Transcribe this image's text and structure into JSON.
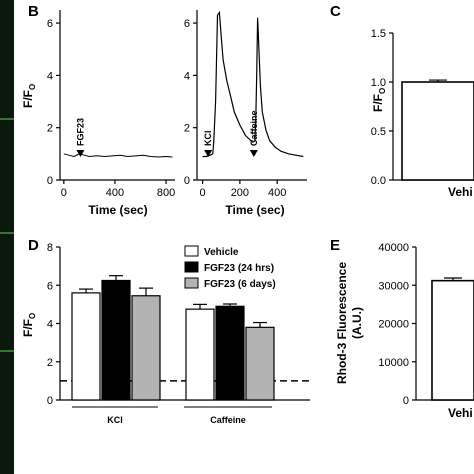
{
  "panel_labels": {
    "b": "B",
    "c": "C",
    "d": "D",
    "e": "E"
  },
  "colors": {
    "strip": "#1b3a1b",
    "strip_bright": "#2f7a2f",
    "gray_bar": "#b3b3b3"
  },
  "chart_data": [
    {
      "id": "b1",
      "type": "line",
      "ylabel": "F/F",
      "ylabel_sub": "O",
      "xlabel": "Time (sec)",
      "xlim": [
        -30,
        870
      ],
      "ylim": [
        0,
        6.5
      ],
      "xticks": [
        "0",
        "400",
        "800"
      ],
      "xtick_values": [
        0,
        400,
        800
      ],
      "yticks": [
        "0",
        "2",
        "4",
        "6"
      ],
      "ytick_values": [
        0,
        2,
        4,
        6
      ],
      "x": [
        0,
        40,
        80,
        120,
        160,
        200,
        260,
        320,
        380,
        440,
        500,
        560,
        620,
        680,
        740,
        800,
        850
      ],
      "y": [
        1.0,
        0.95,
        0.9,
        1.0,
        0.95,
        0.9,
        0.93,
        0.9,
        0.92,
        0.95,
        0.9,
        0.92,
        0.95,
        0.9,
        0.88,
        0.9,
        0.88
      ],
      "annotations": [
        {
          "text": "FGF23",
          "x": 130
        }
      ]
    },
    {
      "id": "b2",
      "type": "line",
      "xlabel": "Time (sec)",
      "xlim": [
        -30,
        560
      ],
      "ylim": [
        0,
        6.5
      ],
      "xticks": [
        "0",
        "200",
        "400"
      ],
      "xtick_values": [
        0,
        200,
        400
      ],
      "yticks": [
        "0",
        "2",
        "4",
        "6"
      ],
      "ytick_values": [
        0,
        2,
        4,
        6
      ],
      "x": [
        0,
        20,
        40,
        55,
        60,
        70,
        80,
        90,
        100,
        110,
        130,
        150,
        170,
        200,
        230,
        260,
        270,
        280,
        285,
        290,
        295,
        300,
        310,
        320,
        340,
        360,
        390,
        420,
        460,
        500,
        540
      ],
      "y": [
        0.9,
        0.9,
        0.95,
        1.0,
        1.5,
        3.0,
        6.3,
        6.4,
        5.5,
        4.6,
        3.8,
        3.2,
        2.6,
        2.1,
        1.7,
        1.5,
        1.45,
        1.5,
        2.2,
        4.0,
        6.2,
        5.4,
        3.6,
        2.6,
        1.9,
        1.5,
        1.25,
        1.1,
        1.0,
        0.95,
        0.9
      ],
      "annotations": [
        {
          "text": "KCl",
          "x": 30
        },
        {
          "text": "Caffeine",
          "x": 275
        }
      ]
    },
    {
      "id": "c",
      "type": "bar",
      "ylabel": "F/F",
      "ylabel_sub": "O",
      "ylim": [
        0,
        1.5
      ],
      "yticks": [
        "0.0",
        "0.5",
        "1.0",
        "1.5"
      ],
      "ytick_values": [
        0,
        0.5,
        1.0,
        1.5
      ],
      "categories": [
        "Vehicle"
      ],
      "category_shown": "Vehi",
      "values": [
        1.0
      ],
      "errors": [
        0.02
      ]
    },
    {
      "id": "d",
      "type": "bar",
      "ylabel": "F/F",
      "ylabel_sub": "O",
      "ylim": [
        0,
        8
      ],
      "yticks": [
        "0",
        "2",
        "4",
        "6",
        "8"
      ],
      "ytick_values": [
        0,
        2,
        4,
        6,
        8
      ],
      "categories": [
        "KCl",
        "Caffeine"
      ],
      "series": [
        {
          "name": "Vehicle",
          "values": [
            5.6,
            4.75
          ],
          "errors": [
            0.2,
            0.25
          ],
          "color": "#ffffff"
        },
        {
          "name": "FGF23 (24 hrs)",
          "values": [
            6.25,
            4.9
          ],
          "errors": [
            0.25,
            0.12
          ],
          "color": "#000000"
        },
        {
          "name": "FGF23 (6 days)",
          "values": [
            5.45,
            3.8
          ],
          "errors": [
            0.4,
            0.25
          ],
          "color": "#b3b3b3"
        }
      ],
      "baseline": 1.0,
      "legend_position": "top-right"
    },
    {
      "id": "e",
      "type": "bar",
      "ylabel": "Rhod-3 Fluorescence",
      "ylabel2": "(A.U.)",
      "ylim": [
        0,
        40000
      ],
      "yticks": [
        "0",
        "10000",
        "20000",
        "30000",
        "40000"
      ],
      "ytick_values": [
        0,
        10000,
        20000,
        30000,
        40000
      ],
      "categories": [
        "Vehicle"
      ],
      "category_shown": "Vehi",
      "values": [
        31200
      ],
      "errors": [
        700
      ]
    }
  ]
}
